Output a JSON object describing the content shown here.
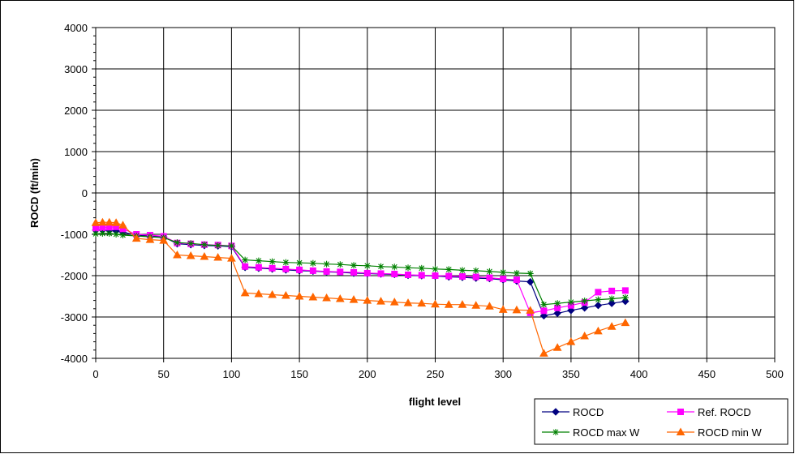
{
  "chart_data": {
    "type": "line",
    "title": "",
    "xlabel": "flight level",
    "ylabel": "ROCD (ft/min)",
    "xlim": [
      0,
      500
    ],
    "ylim": [
      -4000,
      4000
    ],
    "xticks": [
      0,
      50,
      100,
      150,
      200,
      250,
      300,
      350,
      400,
      450,
      500
    ],
    "yticks": [
      -4000,
      -3000,
      -2000,
      -1000,
      0,
      1000,
      2000,
      3000,
      4000
    ],
    "grid": true,
    "legend_position": "bottom-right",
    "series": [
      {
        "name": "ROCD",
        "color": "#000080",
        "marker": "diamond",
        "x": [
          0,
          5,
          10,
          15,
          20,
          30,
          40,
          50,
          60,
          70,
          80,
          90,
          100,
          110,
          120,
          130,
          140,
          150,
          160,
          170,
          180,
          190,
          200,
          210,
          220,
          230,
          240,
          250,
          260,
          270,
          280,
          290,
          300,
          310,
          320,
          330,
          340,
          350,
          360,
          370,
          380,
          390
        ],
        "y": [
          -900,
          -900,
          -910,
          -920,
          -950,
          -1020,
          -1040,
          -1060,
          -1230,
          -1250,
          -1270,
          -1280,
          -1300,
          -1800,
          -1820,
          -1840,
          -1860,
          -1880,
          -1890,
          -1910,
          -1920,
          -1940,
          -1950,
          -1960,
          -1970,
          -1990,
          -2000,
          -2010,
          -2030,
          -2040,
          -2060,
          -2070,
          -2100,
          -2130,
          -2150,
          -2970,
          -2910,
          -2840,
          -2780,
          -2720,
          -2670,
          -2620
        ]
      },
      {
        "name": "Ref. ROCD",
        "color": "#FF00FF",
        "marker": "square",
        "x": [
          0,
          5,
          10,
          15,
          20,
          30,
          40,
          50,
          60,
          70,
          80,
          90,
          100,
          110,
          120,
          130,
          140,
          150,
          160,
          170,
          180,
          190,
          200,
          210,
          220,
          230,
          240,
          250,
          260,
          270,
          280,
          290,
          300,
          310,
          320,
          330,
          340,
          350,
          360,
          370,
          380,
          390
        ],
        "y": [
          -850,
          -840,
          -830,
          -820,
          -870,
          -1000,
          -1020,
          -1050,
          -1210,
          -1230,
          -1250,
          -1260,
          -1280,
          -1780,
          -1800,
          -1820,
          -1840,
          -1860,
          -1880,
          -1900,
          -1910,
          -1920,
          -1940,
          -1950,
          -1960,
          -1980,
          -1990,
          -2000,
          -2010,
          -2020,
          -2030,
          -2050,
          -2080,
          -2100,
          -2900,
          -2850,
          -2780,
          -2720,
          -2650,
          -2400,
          -2370,
          -2360
        ]
      },
      {
        "name": "ROCD max W",
        "color": "#008000",
        "marker": "asterisk",
        "x": [
          0,
          5,
          10,
          15,
          20,
          30,
          40,
          50,
          60,
          70,
          80,
          90,
          100,
          110,
          120,
          130,
          140,
          150,
          160,
          170,
          180,
          190,
          200,
          210,
          220,
          230,
          240,
          250,
          260,
          270,
          280,
          290,
          300,
          310,
          320,
          330,
          340,
          350,
          360,
          370,
          380,
          390
        ],
        "y": [
          -990,
          -980,
          -980,
          -1000,
          -1020,
          -1040,
          -1060,
          -1080,
          -1200,
          -1220,
          -1250,
          -1270,
          -1280,
          -1620,
          -1640,
          -1660,
          -1680,
          -1690,
          -1700,
          -1720,
          -1730,
          -1750,
          -1760,
          -1780,
          -1790,
          -1810,
          -1820,
          -1840,
          -1850,
          -1870,
          -1880,
          -1900,
          -1920,
          -1940,
          -1950,
          -2700,
          -2670,
          -2640,
          -2610,
          -2580,
          -2560,
          -2530
        ]
      },
      {
        "name": "ROCD min W",
        "color": "#FF6600",
        "marker": "triangle",
        "x": [
          0,
          5,
          10,
          15,
          20,
          30,
          40,
          50,
          60,
          70,
          80,
          90,
          100,
          110,
          120,
          130,
          140,
          150,
          160,
          170,
          180,
          190,
          200,
          210,
          220,
          230,
          240,
          250,
          260,
          270,
          280,
          290,
          300,
          310,
          320,
          330,
          340,
          350,
          360,
          370,
          380,
          390
        ],
        "y": [
          -720,
          -710,
          -710,
          -720,
          -780,
          -1100,
          -1130,
          -1150,
          -1500,
          -1520,
          -1540,
          -1560,
          -1580,
          -2420,
          -2440,
          -2460,
          -2480,
          -2500,
          -2520,
          -2540,
          -2560,
          -2580,
          -2600,
          -2620,
          -2640,
          -2660,
          -2670,
          -2690,
          -2700,
          -2700,
          -2720,
          -2740,
          -2820,
          -2830,
          -2840,
          -3880,
          -3740,
          -3600,
          -3460,
          -3340,
          -3230,
          -3140
        ]
      }
    ]
  }
}
